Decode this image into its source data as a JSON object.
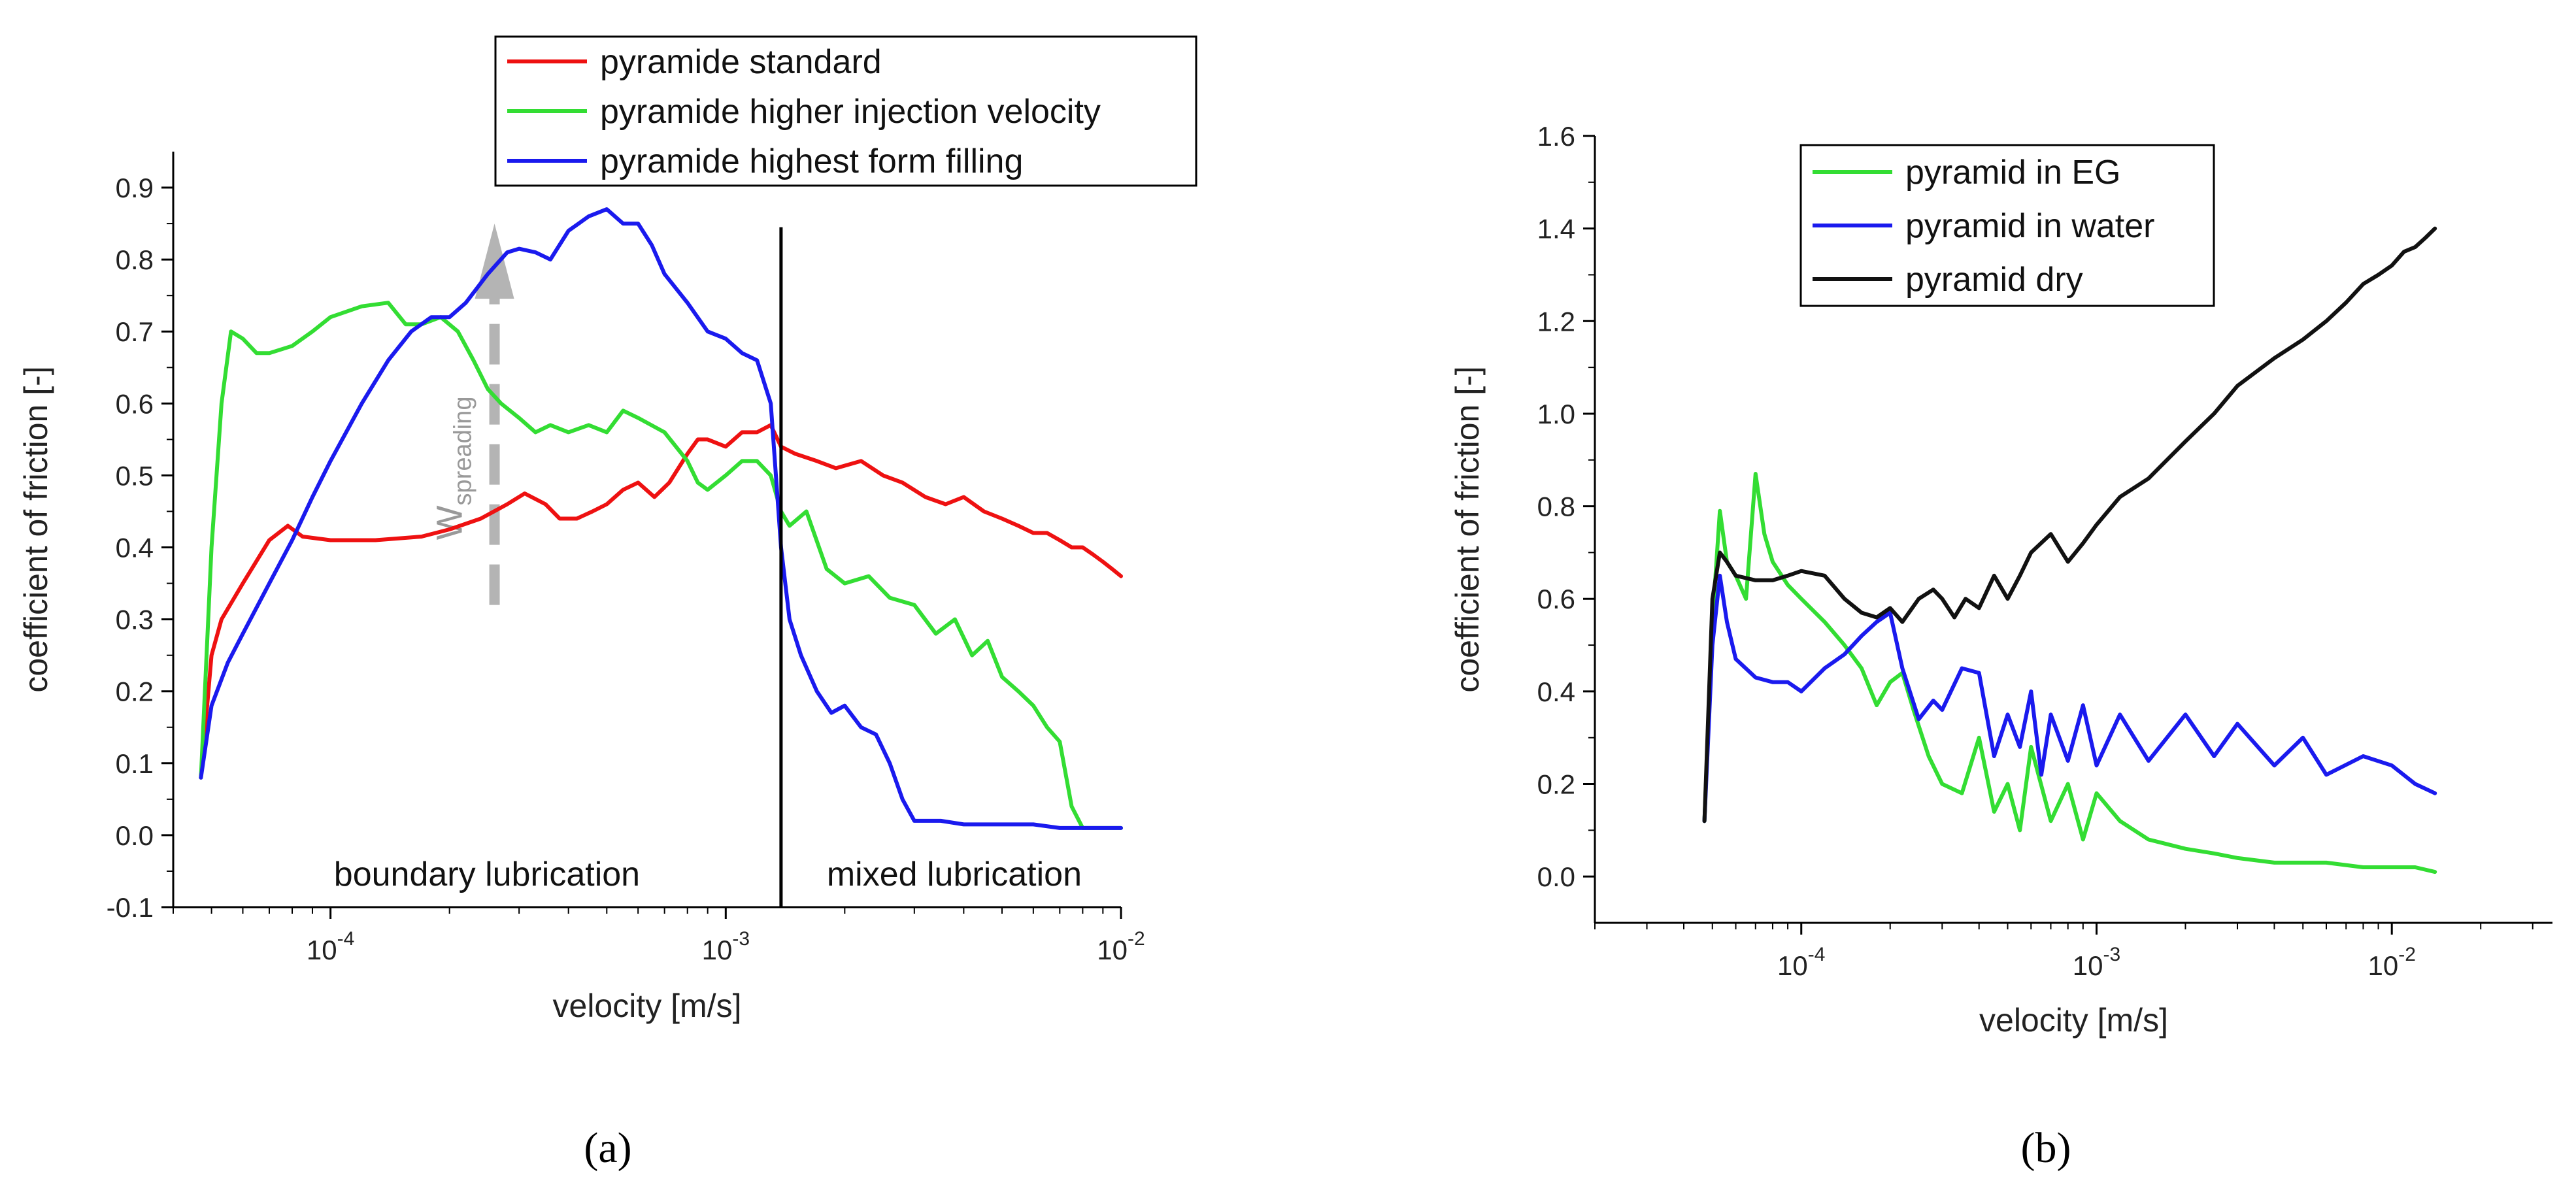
{
  "chart_data": [
    {
      "id": "a",
      "type": "line",
      "panel_label": "(a)",
      "xlabel": "velocity [m/s]",
      "ylabel": "coefficient of friction [-]",
      "xscale": "log",
      "xlim": [
        4e-05,
        0.01
      ],
      "ylim": [
        -0.1,
        0.95
      ],
      "yticks": [
        -0.1,
        0.0,
        0.1,
        0.2,
        0.3,
        0.4,
        0.5,
        0.6,
        0.7,
        0.8,
        0.9
      ],
      "ytick_labels": [
        "-0.1",
        "0.0",
        "0.1",
        "0.2",
        "0.3",
        "0.4",
        "0.5",
        "0.6",
        "0.7",
        "0.8",
        "0.9"
      ],
      "xticks": [
        0.0001,
        0.001,
        0.01
      ],
      "xtick_labels": [
        {
          "base": "10",
          "exp": "-4"
        },
        {
          "base": "10",
          "exp": "-3"
        },
        {
          "base": "10",
          "exp": "-2"
        }
      ],
      "legend_position": "top",
      "vline_x": 0.00138,
      "regions": [
        "boundary lubrication",
        "mixed lubrication"
      ],
      "annotation": {
        "main": "W",
        "sub": "spreading",
        "x": 0.00026,
        "y_from": 0.32,
        "y_to": 0.85,
        "color": "#b4b4b4"
      },
      "series": [
        {
          "name": "pyramide standard",
          "color": "#ee1111",
          "x": [
            4.7e-05,
            5e-05,
            5.3e-05,
            6e-05,
            7e-05,
            7.8e-05,
            8.5e-05,
            0.0001,
            0.00013,
            0.00017,
            0.0002,
            0.00024,
            0.00028,
            0.00031,
            0.00035,
            0.00038,
            0.00042,
            0.00046,
            0.0005,
            0.00055,
            0.0006,
            0.00066,
            0.00072,
            0.0008,
            0.00085,
            0.0009,
            0.001,
            0.0011,
            0.0012,
            0.0013,
            0.00138,
            0.0015,
            0.0017,
            0.0019,
            0.0022,
            0.0025,
            0.0028,
            0.0032,
            0.0036,
            0.004,
            0.0045,
            0.005,
            0.0055,
            0.006,
            0.0065,
            0.007,
            0.0075,
            0.008,
            0.0085,
            0.009,
            0.0095,
            0.01
          ],
          "y": [
            0.08,
            0.25,
            0.3,
            0.35,
            0.41,
            0.43,
            0.415,
            0.41,
            0.41,
            0.415,
            0.425,
            0.44,
            0.46,
            0.475,
            0.46,
            0.44,
            0.44,
            0.45,
            0.46,
            0.48,
            0.49,
            0.47,
            0.49,
            0.53,
            0.55,
            0.55,
            0.54,
            0.56,
            0.56,
            0.57,
            0.54,
            0.53,
            0.52,
            0.51,
            0.52,
            0.5,
            0.49,
            0.47,
            0.46,
            0.47,
            0.45,
            0.44,
            0.43,
            0.42,
            0.42,
            0.41,
            0.4,
            0.4,
            0.39,
            0.38,
            0.37,
            0.36
          ]
        },
        {
          "name": "pyramide higher injection velocity",
          "color": "#33dd33",
          "x": [
            4.7e-05,
            5e-05,
            5.3e-05,
            5.6e-05,
            6e-05,
            6.5e-05,
            7e-05,
            8e-05,
            9e-05,
            0.0001,
            0.00012,
            0.00014,
            0.000155,
            0.00017,
            0.00019,
            0.00021,
            0.00023,
            0.00025,
            0.00027,
            0.0003,
            0.00033,
            0.00036,
            0.0004,
            0.00045,
            0.0005,
            0.00055,
            0.0006,
            0.0007,
            0.0008,
            0.00085,
            0.0009,
            0.001,
            0.0011,
            0.0012,
            0.0013,
            0.00138,
            0.00145,
            0.0016,
            0.0018,
            0.002,
            0.0023,
            0.0026,
            0.003,
            0.0034,
            0.0038,
            0.0042,
            0.0046,
            0.005,
            0.0055,
            0.006,
            0.0065,
            0.007,
            0.0075,
            0.008,
            0.009,
            0.01
          ],
          "y": [
            0.08,
            0.4,
            0.6,
            0.7,
            0.69,
            0.67,
            0.67,
            0.68,
            0.7,
            0.72,
            0.735,
            0.74,
            0.71,
            0.71,
            0.72,
            0.7,
            0.66,
            0.62,
            0.6,
            0.58,
            0.56,
            0.57,
            0.56,
            0.57,
            0.56,
            0.59,
            0.58,
            0.56,
            0.52,
            0.49,
            0.48,
            0.5,
            0.52,
            0.52,
            0.5,
            0.45,
            0.43,
            0.45,
            0.37,
            0.35,
            0.36,
            0.33,
            0.32,
            0.28,
            0.3,
            0.25,
            0.27,
            0.22,
            0.2,
            0.18,
            0.15,
            0.13,
            0.04,
            0.01,
            0.01,
            0.01
          ]
        },
        {
          "name": "pyramide highest form filling",
          "color": "#1a1aee",
          "x": [
            4.7e-05,
            5e-05,
            5.5e-05,
            6e-05,
            7e-05,
            8e-05,
            9e-05,
            0.0001,
            0.00012,
            0.00014,
            0.00016,
            0.00018,
            0.0002,
            0.00022,
            0.00025,
            0.00028,
            0.0003,
            0.00033,
            0.00036,
            0.0004,
            0.00045,
            0.0005,
            0.00055,
            0.0006,
            0.00065,
            0.0007,
            0.0008,
            0.0009,
            0.001,
            0.0011,
            0.0012,
            0.0013,
            0.00138,
            0.00145,
            0.00155,
            0.0017,
            0.00185,
            0.002,
            0.0022,
            0.0024,
            0.0026,
            0.0028,
            0.003,
            0.0035,
            0.004,
            0.005,
            0.006,
            0.007,
            0.008,
            0.009,
            0.01
          ],
          "y": [
            0.08,
            0.18,
            0.24,
            0.28,
            0.35,
            0.41,
            0.47,
            0.52,
            0.6,
            0.66,
            0.7,
            0.72,
            0.72,
            0.74,
            0.78,
            0.81,
            0.815,
            0.81,
            0.8,
            0.84,
            0.86,
            0.87,
            0.85,
            0.85,
            0.82,
            0.78,
            0.74,
            0.7,
            0.69,
            0.67,
            0.66,
            0.6,
            0.4,
            0.3,
            0.25,
            0.2,
            0.17,
            0.18,
            0.15,
            0.14,
            0.1,
            0.05,
            0.02,
            0.02,
            0.015,
            0.015,
            0.015,
            0.01,
            0.01,
            0.01,
            0.01
          ]
        }
      ]
    },
    {
      "id": "b",
      "type": "line",
      "panel_label": "(b)",
      "xlabel": "velocity [m/s]",
      "ylabel": "coefficient of friction [-]",
      "xscale": "log",
      "xlim": [
        2e-05,
        0.035
      ],
      "ylim": [
        -0.1,
        1.6
      ],
      "yticks": [
        0.0,
        0.2,
        0.4,
        0.6,
        0.8,
        1.0,
        1.2,
        1.4,
        1.6
      ],
      "ytick_labels": [
        "0.0",
        "0.2",
        "0.4",
        "0.6",
        "0.8",
        "1.0",
        "1.2",
        "1.4",
        "1.6"
      ],
      "xticks": [
        0.0001,
        0.001,
        0.01
      ],
      "xtick_labels": [
        {
          "base": "10",
          "exp": "-4"
        },
        {
          "base": "10",
          "exp": "-3"
        },
        {
          "base": "10",
          "exp": "-2"
        }
      ],
      "legend_position": "top-left",
      "series": [
        {
          "name": "pyramid in EG",
          "color": "#33dd33",
          "x": [
            4.7e-05,
            5e-05,
            5.3e-05,
            5.6e-05,
            6e-05,
            6.5e-05,
            7e-05,
            7.5e-05,
            8e-05,
            9e-05,
            0.0001,
            0.00012,
            0.00014,
            0.00016,
            0.00018,
            0.0002,
            0.00022,
            0.00024,
            0.00027,
            0.0003,
            0.00035,
            0.0004,
            0.00045,
            0.0005,
            0.00055,
            0.0006,
            0.0007,
            0.0008,
            0.0009,
            0.001,
            0.0012,
            0.0015,
            0.002,
            0.0025,
            0.003,
            0.004,
            0.005,
            0.006,
            0.008,
            0.01,
            0.012,
            0.014
          ],
          "y": [
            0.12,
            0.55,
            0.79,
            0.68,
            0.65,
            0.6,
            0.87,
            0.74,
            0.68,
            0.63,
            0.6,
            0.55,
            0.5,
            0.45,
            0.37,
            0.42,
            0.44,
            0.36,
            0.26,
            0.2,
            0.18,
            0.3,
            0.14,
            0.2,
            0.1,
            0.28,
            0.12,
            0.2,
            0.08,
            0.18,
            0.12,
            0.08,
            0.06,
            0.05,
            0.04,
            0.03,
            0.03,
            0.03,
            0.02,
            0.02,
            0.02,
            0.01
          ]
        },
        {
          "name": "pyramid in water",
          "color": "#1a1aee",
          "x": [
            4.7e-05,
            5e-05,
            5.3e-05,
            5.6e-05,
            6e-05,
            7e-05,
            8e-05,
            9e-05,
            0.0001,
            0.00012,
            0.00014,
            0.00016,
            0.00018,
            0.0002,
            0.00022,
            0.00025,
            0.00028,
            0.0003,
            0.00035,
            0.0004,
            0.00045,
            0.0005,
            0.00055,
            0.0006,
            0.00065,
            0.0007,
            0.0008,
            0.0009,
            0.001,
            0.0012,
            0.0015,
            0.002,
            0.0025,
            0.003,
            0.004,
            0.005,
            0.006,
            0.008,
            0.01,
            0.012,
            0.014
          ],
          "y": [
            0.12,
            0.5,
            0.65,
            0.55,
            0.47,
            0.43,
            0.42,
            0.42,
            0.4,
            0.45,
            0.48,
            0.52,
            0.55,
            0.57,
            0.45,
            0.34,
            0.38,
            0.36,
            0.45,
            0.44,
            0.26,
            0.35,
            0.28,
            0.4,
            0.22,
            0.35,
            0.25,
            0.37,
            0.24,
            0.35,
            0.25,
            0.35,
            0.26,
            0.33,
            0.24,
            0.3,
            0.22,
            0.26,
            0.24,
            0.2,
            0.18
          ]
        },
        {
          "name": "pyramid dry",
          "color": "#111111",
          "x": [
            4.7e-05,
            5e-05,
            5.3e-05,
            5.6e-05,
            6e-05,
            7e-05,
            8e-05,
            9e-05,
            0.0001,
            0.00012,
            0.00014,
            0.00016,
            0.00018,
            0.0002,
            0.00022,
            0.00025,
            0.00028,
            0.0003,
            0.00033,
            0.00036,
            0.0004,
            0.00045,
            0.0005,
            0.00055,
            0.0006,
            0.0007,
            0.0008,
            0.0009,
            0.001,
            0.0012,
            0.0015,
            0.002,
            0.0025,
            0.003,
            0.004,
            0.005,
            0.006,
            0.007,
            0.008,
            0.009,
            0.01,
            0.011,
            0.012,
            0.013,
            0.014
          ],
          "y": [
            0.12,
            0.6,
            0.7,
            0.68,
            0.65,
            0.64,
            0.64,
            0.65,
            0.66,
            0.65,
            0.6,
            0.57,
            0.56,
            0.58,
            0.55,
            0.6,
            0.62,
            0.6,
            0.56,
            0.6,
            0.58,
            0.65,
            0.6,
            0.65,
            0.7,
            0.74,
            0.68,
            0.72,
            0.76,
            0.82,
            0.86,
            0.94,
            1.0,
            1.06,
            1.12,
            1.16,
            1.2,
            1.24,
            1.28,
            1.3,
            1.32,
            1.35,
            1.36,
            1.38,
            1.4
          ]
        }
      ]
    }
  ]
}
